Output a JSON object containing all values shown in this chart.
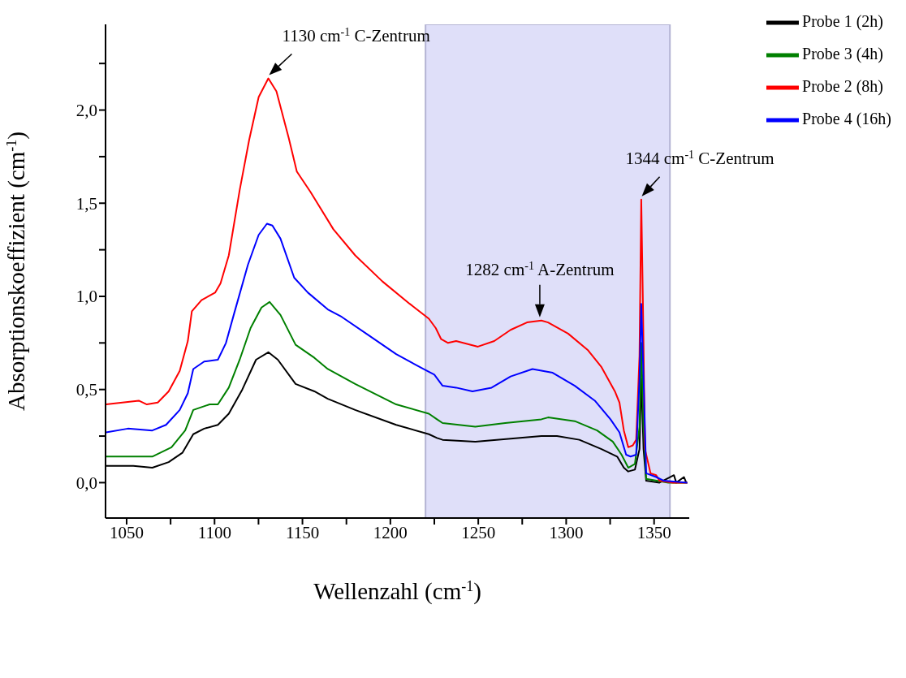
{
  "chart_data": {
    "type": "line",
    "xlabel": "Wellenzahl (cm$^{-1}$)",
    "ylabel": "Absorptionskoeffizient (cm$^{-1}$)",
    "xlim": [
      1038,
      1370
    ],
    "xticks": [
      1050,
      {
        "value": 1075,
        "label": null
      },
      1100,
      {
        "value": 1125,
        "label": null
      },
      1150,
      {
        "value": 1175,
        "label": null
      },
      1200,
      {
        "value": 1225,
        "label": null
      },
      1250,
      {
        "value": 1275,
        "label": null
      },
      1300,
      {
        "value": 1325,
        "label": null
      },
      1350
    ],
    "ylim": [
      -0.19,
      2.46
    ],
    "yticks": [
      {
        "value": 0,
        "label": "0,0"
      },
      {
        "value": 0.25,
        "label": null
      },
      {
        "value": 0.5,
        "label": "0,5"
      },
      {
        "value": 0.75,
        "label": null
      },
      {
        "value": 1,
        "label": "1,0"
      },
      {
        "value": 1.25,
        "label": null
      },
      {
        "value": 1.5,
        "label": "1,5"
      },
      {
        "value": 1.75,
        "label": null
      },
      {
        "value": 2,
        "label": "2,0"
      },
      {
        "value": 2.25,
        "label": null
      }
    ],
    "legend": "top right",
    "marker": "none",
    "line_style": "solid",
    "bands": [
      {
        "axis": "x",
        "from": 1220,
        "to": 1359,
        "color": "#dcdcf8"
      }
    ],
    "annotations": [
      {
        "text": "1130 cm$^{-1}$ C-Zentrum",
        "x": 1131,
        "y": 2.17
      },
      {
        "text": "1282 cm$^{-1}$ A-Zentrum",
        "x": 1285,
        "y": 0.87
      },
      {
        "text": "1344 cm$^{-1}$ C-Zentrum",
        "x": 1343,
        "y": 1.52
      }
    ],
    "series": [
      {
        "name": "Probe 1 (2h)",
        "color": "#000000",
        "x": [
          1038.3,
          1053.8,
          1064.6,
          1073.9,
          1081.7,
          1087.9,
          1094.1,
          1101.9,
          1108.1,
          1115.8,
          1123.6,
          1130.6,
          1136,
          1146.1,
          1156.8,
          1164.4,
          1180,
          1203.3,
          1221.9,
          1226.5,
          1229.7,
          1248.3,
          1285.9,
          1294.8,
          1307.5,
          1320.1,
          1329,
          1332.8,
          1335.3,
          1339.1,
          1341.7,
          1342.7,
          1344,
          1345.5,
          1353.1,
          1361.3,
          1362.6,
          1367,
          1368.3
        ],
        "values": [
          0.09,
          0.09,
          0.08,
          0.11,
          0.16,
          0.26,
          0.29,
          0.31,
          0.37,
          0.5,
          0.66,
          0.7,
          0.66,
          0.53,
          0.49,
          0.45,
          0.39,
          0.31,
          0.26,
          0.24,
          0.23,
          0.22,
          0.25,
          0.25,
          0.23,
          0.18,
          0.14,
          0.08,
          0.06,
          0.07,
          0.18,
          0.56,
          0.18,
          0.01,
          0,
          0.04,
          0,
          0.03,
          0
        ]
      },
      {
        "name": "Probe 3 (4h)",
        "color": "#008000",
        "x": [
          1038.3,
          1053.8,
          1064.6,
          1075.5,
          1083.3,
          1087.9,
          1097.2,
          1101.9,
          1108.1,
          1114.3,
          1120.5,
          1126.7,
          1131.3,
          1137.5,
          1146.1,
          1156.8,
          1164.4,
          1180,
          1203.3,
          1221.9,
          1226.5,
          1229.7,
          1239,
          1248.3,
          1265.3,
          1285.9,
          1289.7,
          1304.9,
          1317.6,
          1326.5,
          1331.5,
          1335.3,
          1339.1,
          1341.7,
          1342.7,
          1344,
          1345.5,
          1358.1,
          1368.9
        ],
        "values": [
          0.14,
          0.14,
          0.14,
          0.19,
          0.28,
          0.39,
          0.42,
          0.42,
          0.51,
          0.66,
          0.83,
          0.94,
          0.97,
          0.9,
          0.74,
          0.67,
          0.61,
          0.53,
          0.42,
          0.37,
          0.34,
          0.32,
          0.31,
          0.3,
          0.32,
          0.34,
          0.35,
          0.33,
          0.28,
          0.22,
          0.15,
          0.08,
          0.1,
          0.3,
          0.75,
          0.3,
          0.02,
          0,
          0
        ]
      },
      {
        "name": "Probe 2 (8h)",
        "color": "#ff0000",
        "x": [
          1038.3,
          1056.9,
          1061.5,
          1067.7,
          1073.9,
          1080.2,
          1084.8,
          1087.1,
          1092.6,
          1100.3,
          1103.4,
          1108.1,
          1114.3,
          1119.7,
          1125.1,
          1130.6,
          1135.2,
          1142.2,
          1146.8,
          1154.6,
          1167.6,
          1180,
          1195.5,
          1211,
          1221.9,
          1225.8,
          1228.9,
          1232.8,
          1237.4,
          1249.8,
          1259.1,
          1268.4,
          1277.7,
          1285.9,
          1289.7,
          1301.1,
          1312.5,
          1320.1,
          1327.7,
          1330.3,
          1332.8,
          1335.3,
          1337.9,
          1339.8,
          1341.7,
          1342.7,
          1343.7,
          1344.8,
          1348,
          1351.2,
          1353.1,
          1360.7,
          1368.9
        ],
        "values": [
          0.42,
          0.44,
          0.42,
          0.43,
          0.49,
          0.6,
          0.76,
          0.92,
          0.98,
          1.02,
          1.07,
          1.22,
          1.57,
          1.84,
          2.07,
          2.17,
          2.1,
          1.85,
          1.67,
          1.56,
          1.36,
          1.22,
          1.08,
          0.96,
          0.88,
          0.83,
          0.77,
          0.75,
          0.76,
          0.73,
          0.76,
          0.82,
          0.86,
          0.87,
          0.86,
          0.8,
          0.71,
          0.62,
          0.49,
          0.43,
          0.28,
          0.19,
          0.2,
          0.23,
          0.68,
          1.52,
          0.93,
          0.18,
          0.05,
          0.04,
          0.01,
          0,
          0
        ]
      },
      {
        "name": "Probe 4 (16h)",
        "color": "#0000ff",
        "x": [
          1038.3,
          1050.7,
          1064.6,
          1072.4,
          1080.2,
          1084.8,
          1087.9,
          1094.1,
          1101.9,
          1106.5,
          1111.2,
          1119,
          1125.1,
          1129.8,
          1132.9,
          1137.5,
          1145.3,
          1153.1,
          1164.4,
          1172.3,
          1187.8,
          1203.3,
          1218.8,
          1225,
          1229.7,
          1237.4,
          1246.7,
          1257.6,
          1268.4,
          1280.8,
          1292.3,
          1304.9,
          1316.3,
          1325.2,
          1330.3,
          1334.1,
          1336.6,
          1339.8,
          1341.7,
          1342.7,
          1344,
          1345.5,
          1351.2,
          1355.6,
          1368.9
        ],
        "values": [
          0.27,
          0.29,
          0.28,
          0.31,
          0.39,
          0.48,
          0.61,
          0.65,
          0.66,
          0.75,
          0.91,
          1.17,
          1.33,
          1.39,
          1.38,
          1.31,
          1.1,
          1.02,
          0.93,
          0.89,
          0.79,
          0.69,
          0.61,
          0.58,
          0.52,
          0.51,
          0.49,
          0.51,
          0.57,
          0.61,
          0.59,
          0.52,
          0.44,
          0.34,
          0.27,
          0.15,
          0.14,
          0.15,
          0.56,
          0.96,
          0.56,
          0.05,
          0.03,
          0.01,
          0
        ]
      }
    ]
  }
}
